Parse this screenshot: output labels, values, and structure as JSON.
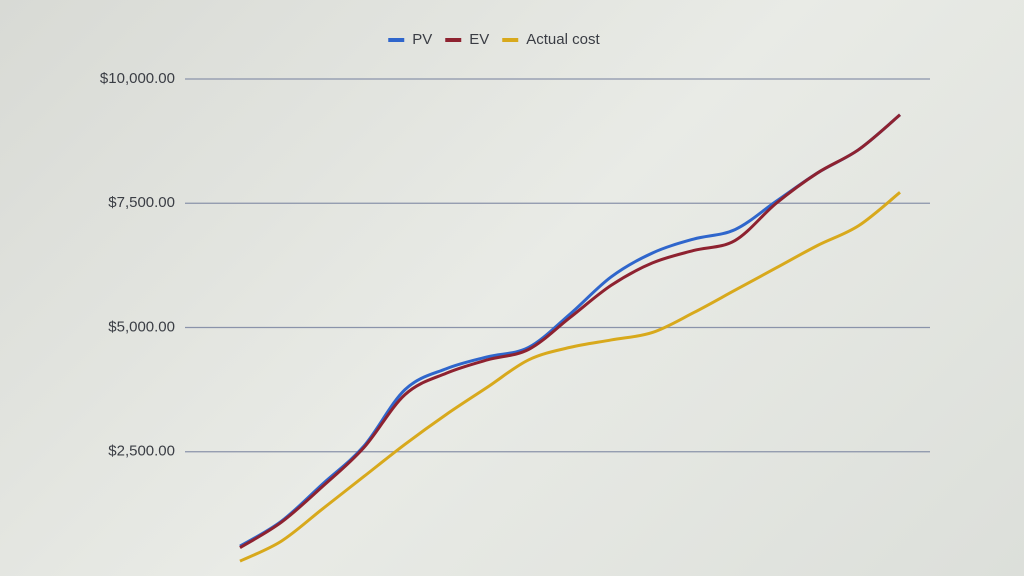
{
  "chart_data": {
    "type": "line",
    "categories": [
      null,
      null,
      null,
      null,
      null,
      null,
      null,
      null,
      null,
      null,
      null,
      null,
      null,
      null,
      null,
      null,
      null
    ],
    "series": [
      {
        "name": "PV",
        "color": "#2f66cc",
        "values": [
          600,
          1100,
          1850,
          2610,
          3750,
          4170,
          4410,
          4600,
          5270,
          6020,
          6500,
          6780,
          6970,
          7540,
          8110,
          8580,
          9280
        ]
      },
      {
        "name": "EV",
        "color": "#8e2230",
        "values": [
          570,
          1080,
          1800,
          2580,
          3650,
          4080,
          4350,
          4560,
          5200,
          5850,
          6300,
          6550,
          6750,
          7500,
          8110,
          8580,
          9280
        ]
      },
      {
        "name": "Actual cost",
        "color": "#d8a91c",
        "values": [
          300,
          700,
          1350,
          2000,
          2650,
          3250,
          3800,
          4350,
          4600,
          4750,
          4900,
          5300,
          5750,
          6200,
          6650,
          7050,
          7720
        ]
      }
    ],
    "ylim": [
      0,
      10000
    ],
    "yticks": [
      {
        "value": 2500,
        "label": "$2,500.00"
      },
      {
        "value": 5000,
        "label": "$5,000.00"
      },
      {
        "value": 7500,
        "label": "$7,500.00"
      },
      {
        "value": 10000,
        "label": "$10,000.00"
      }
    ],
    "grid": true,
    "legend": "top"
  }
}
